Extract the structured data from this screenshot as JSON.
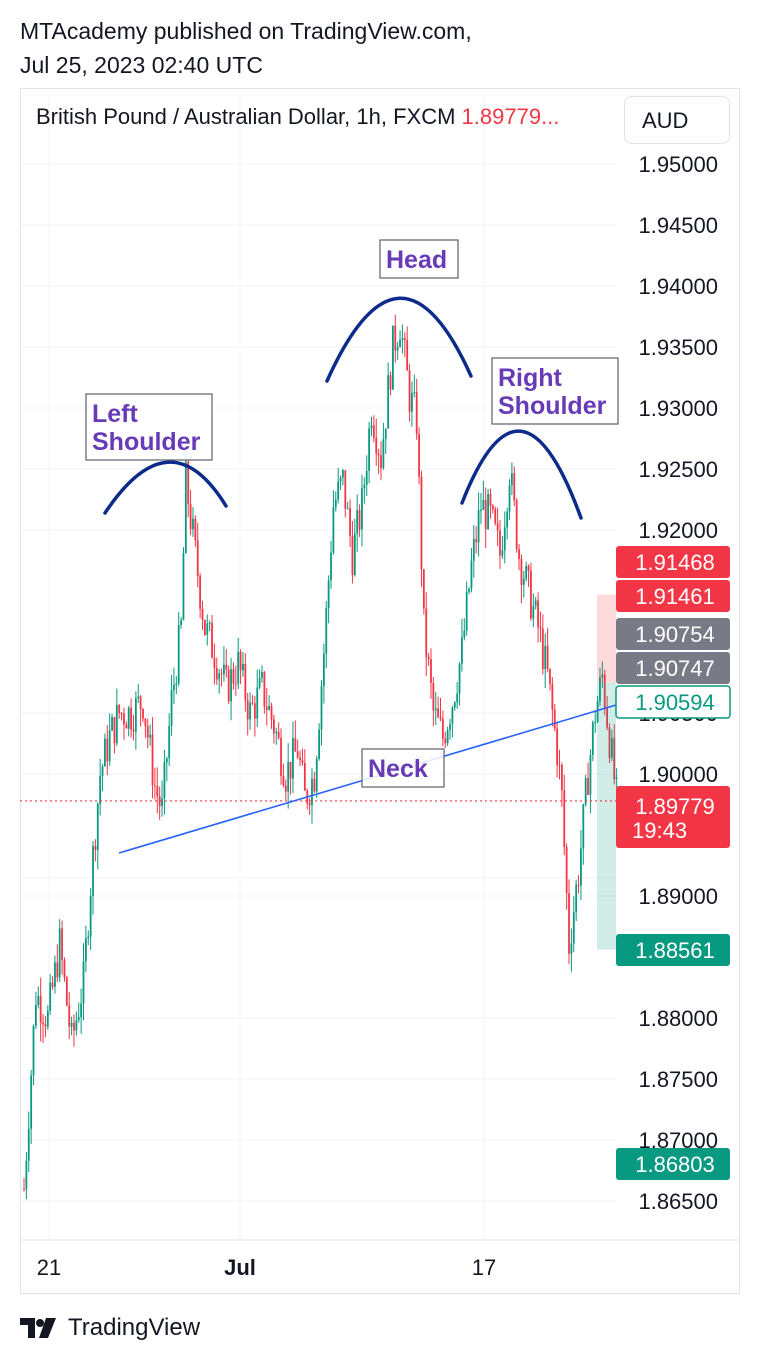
{
  "header": {
    "publisher_line": "MTAcademy published on TradingView.com,",
    "date_line": "Jul 25, 2023 02:40 UTC"
  },
  "legend": {
    "symbol": "British Pound / Australian Dollar, 1h, FXCM",
    "last_price": "1.89779..."
  },
  "currency_button": "AUD",
  "footer": {
    "brand": "TradingView",
    "logo_icon": "tradingview-logo-icon"
  },
  "colors": {
    "up": "#089981",
    "down": "#f23645",
    "arc": "#0d2b8a",
    "neck": "#2962ff",
    "label_text": "#673ab7",
    "grid": "#f0f3fa"
  },
  "chart_data": {
    "type": "candlestick",
    "title": "",
    "x_ticks": [
      "21",
      "Jul",
      "17"
    ],
    "y_ticks": [
      1.95,
      1.945,
      1.94,
      1.935,
      1.93,
      1.925,
      1.92,
      1.905,
      1.9,
      1.89,
      1.88,
      1.875,
      1.87,
      1.865
    ],
    "ylim": [
      1.862,
      1.954
    ],
    "grid": true,
    "price_badges": [
      {
        "value": "1.91468",
        "style": "red"
      },
      {
        "value": "1.91461",
        "style": "red"
      },
      {
        "value": "1.90754",
        "style": "gray"
      },
      {
        "value": "1.90747",
        "style": "gray"
      },
      {
        "value": "1.90594",
        "style": "green-outline"
      },
      {
        "value": "1.89779",
        "sub": "19:43",
        "style": "red"
      },
      {
        "value": "1.88561",
        "style": "green"
      },
      {
        "value": "1.86803",
        "style": "green"
      }
    ],
    "price_path": [
      [
        0,
        1.866
      ],
      [
        5,
        1.882
      ],
      [
        10,
        1.88
      ],
      [
        15,
        1.886
      ],
      [
        20,
        1.878
      ],
      [
        25,
        1.883
      ],
      [
        28,
        1.891
      ],
      [
        32,
        1.9
      ],
      [
        36,
        1.903
      ],
      [
        40,
        1.905
      ],
      [
        45,
        1.905
      ],
      [
        50,
        1.906
      ],
      [
        55,
        1.899
      ],
      [
        58,
        1.897
      ],
      [
        62,
        1.906
      ],
      [
        66,
        1.912
      ],
      [
        68,
        1.924
      ],
      [
        72,
        1.918
      ],
      [
        76,
        1.912
      ],
      [
        80,
        1.91
      ],
      [
        85,
        1.907
      ],
      [
        90,
        1.909
      ],
      [
        95,
        1.905
      ],
      [
        100,
        1.907
      ],
      [
        105,
        1.904
      ],
      [
        110,
        1.9
      ],
      [
        115,
        1.902
      ],
      [
        118,
        1.898
      ],
      [
        122,
        1.9
      ],
      [
        126,
        1.91
      ],
      [
        130,
        1.922
      ],
      [
        134,
        1.924
      ],
      [
        138,
        1.918
      ],
      [
        142,
        1.922
      ],
      [
        146,
        1.93
      ],
      [
        150,
        1.926
      ],
      [
        155,
        1.935
      ],
      [
        158,
        1.937
      ],
      [
        162,
        1.931
      ],
      [
        165,
        1.929
      ],
      [
        168,
        1.912
      ],
      [
        172,
        1.905
      ],
      [
        176,
        1.903
      ],
      [
        180,
        1.906
      ],
      [
        184,
        1.91
      ],
      [
        188,
        1.917
      ],
      [
        192,
        1.922
      ],
      [
        196,
        1.921
      ],
      [
        200,
        1.918
      ],
      [
        204,
        1.925
      ],
      [
        208,
        1.918
      ],
      [
        212,
        1.915
      ],
      [
        216,
        1.912
      ],
      [
        220,
        1.908
      ],
      [
        224,
        1.902
      ],
      [
        226,
        1.898
      ],
      [
        229,
        1.886
      ],
      [
        233,
        1.892
      ],
      [
        237,
        1.9
      ],
      [
        240,
        1.905
      ],
      [
        243,
        1.908
      ],
      [
        246,
        1.903
      ],
      [
        249,
        1.898
      ]
    ],
    "annotations": [
      {
        "text": "Left\nShoulder"
      },
      {
        "text": "Head"
      },
      {
        "text": "Right\nShoulder"
      },
      {
        "text": "Neck"
      }
    ],
    "neckline": {
      "from": [
        40,
        1.8925
      ],
      "to": [
        249,
        1.906
      ]
    }
  }
}
